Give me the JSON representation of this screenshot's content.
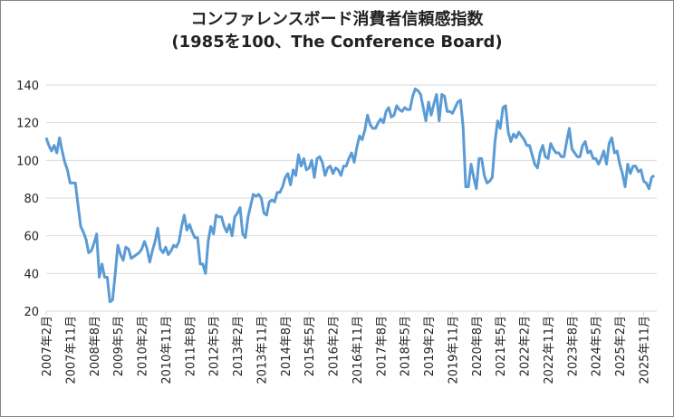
{
  "chart_data": {
    "type": "line",
    "title": "コンファレンスボード消費者信頼感指数",
    "subtitle": "(1985を100、The Conference Board)",
    "xlabel": "",
    "ylabel": "",
    "start_month": "2007年2月",
    "ylim": [
      20,
      140
    ],
    "yticks": [
      "20",
      "40",
      "60",
      "80",
      "100",
      "120",
      "140"
    ],
    "xticks": [
      "2007年2月",
      "2007年11月",
      "2008年8月",
      "2009年5月",
      "2010年2月",
      "2010年11月",
      "2011年8月",
      "2012年5月",
      "2013年2月",
      "2013年11月",
      "2014年8月",
      "2015年5月",
      "2016年2月",
      "2016年11月",
      "2017年8月",
      "2018年5月",
      "2019年2月",
      "2019年11月",
      "2020年8月",
      "2021年5月",
      "2022年2月",
      "2022年11月",
      "2023年8月",
      "2024年5月",
      "2025年2月",
      "2025年11月"
    ],
    "grid": true,
    "line_color": "#5B9BD5",
    "values": [
      112,
      108,
      105,
      108,
      104,
      112,
      105,
      99,
      95,
      88,
      88,
      88,
      76,
      65,
      62,
      58,
      51,
      52,
      56,
      61,
      38,
      45,
      38,
      38,
      25,
      26,
      40,
      55,
      50,
      47,
      54,
      53,
      48,
      49,
      50,
      51,
      53,
      57,
      53,
      46,
      52,
      57,
      64,
      53,
      51,
      54,
      50,
      52,
      55,
      54,
      57,
      65,
      71,
      63,
      66,
      62,
      59,
      59,
      45,
      45,
      40,
      57,
      65,
      61,
      71,
      70,
      70,
      65,
      62,
      66,
      60,
      70,
      72,
      75,
      61,
      59,
      70,
      76,
      82,
      81,
      82,
      80,
      72,
      71,
      78,
      79,
      78,
      83,
      83,
      86,
      91,
      93,
      87,
      95,
      92,
      103,
      97,
      101,
      95,
      96,
      100,
      91,
      101,
      102,
      99,
      92,
      96,
      97,
      93,
      96,
      95,
      92,
      97,
      97,
      101,
      104,
      99,
      107,
      113,
      111,
      116,
      124,
      119,
      117,
      117,
      120,
      122,
      120,
      126,
      128,
      123,
      124,
      129,
      127,
      126,
      128,
      127,
      127,
      134,
      138,
      137,
      135,
      128,
      121,
      131,
      124,
      130,
      135,
      121,
      135,
      134,
      126,
      126,
      125,
      128,
      131,
      132,
      118,
      86,
      86,
      98,
      91,
      85,
      101,
      101,
      92,
      88,
      89,
      91,
      110,
      121,
      117,
      128,
      129,
      115,
      110,
      114,
      112,
      115,
      113,
      111,
      108,
      108,
      103,
      98,
      96,
      104,
      108,
      102,
      101,
      109,
      106,
      104,
      104,
      102,
      102,
      110,
      117,
      106,
      104,
      102,
      102,
      108,
      110,
      104,
      105,
      101,
      101,
      98,
      101,
      105,
      98,
      109,
      112,
      104,
      105,
      98,
      93,
      86,
      98,
      93,
      97,
      97,
      94,
      95,
      89,
      88,
      85,
      91,
      92
    ]
  }
}
